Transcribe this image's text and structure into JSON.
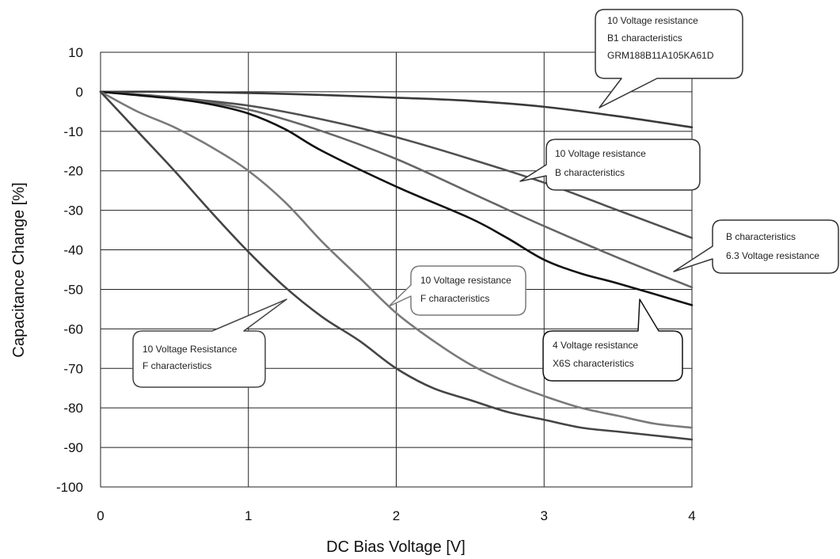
{
  "chart_data": {
    "type": "line",
    "xlabel": "DC Bias Voltage [V]",
    "ylabel": "Capacitance Change [%]",
    "xlim": [
      0,
      4
    ],
    "ylim": [
      -100,
      10
    ],
    "xticks": [
      "0",
      "1",
      "2",
      "3",
      "4"
    ],
    "yticks": [
      "10",
      "0",
      "-10",
      "-20",
      "-30",
      "-40",
      "-50",
      "-60",
      "-70",
      "-80",
      "-90",
      "-100"
    ],
    "grid": true,
    "series": [
      {
        "id": "b1-10v",
        "color": "#3a3a3a",
        "points": [
          [
            0,
            0
          ],
          [
            0.5,
            0
          ],
          [
            1,
            -0.3
          ],
          [
            1.5,
            -0.8
          ],
          [
            2,
            -1.5
          ],
          [
            2.5,
            -2.3
          ],
          [
            3,
            -3.8
          ],
          [
            3.5,
            -6.2
          ],
          [
            4,
            -9
          ]
        ]
      },
      {
        "id": "b-10v",
        "color": "#505050",
        "points": [
          [
            0,
            0
          ],
          [
            0.5,
            -1.5
          ],
          [
            1,
            -3.5
          ],
          [
            1.5,
            -7
          ],
          [
            2,
            -11.5
          ],
          [
            2.5,
            -17
          ],
          [
            3,
            -23
          ],
          [
            3.5,
            -30
          ],
          [
            4,
            -37
          ]
        ]
      },
      {
        "id": "b-6.3v",
        "color": "#666666",
        "points": [
          [
            0,
            0
          ],
          [
            0.5,
            -1.5
          ],
          [
            1,
            -4.5
          ],
          [
            1.5,
            -10
          ],
          [
            2,
            -17
          ],
          [
            2.5,
            -25.5
          ],
          [
            3,
            -34
          ],
          [
            3.5,
            -42
          ],
          [
            4,
            -49.5
          ]
        ]
      },
      {
        "id": "x6s-4v",
        "color": "#111111",
        "points": [
          [
            0,
            0
          ],
          [
            0.5,
            -1.8
          ],
          [
            0.75,
            -3.2
          ],
          [
            1,
            -5.5
          ],
          [
            1.25,
            -9.5
          ],
          [
            1.5,
            -15
          ],
          [
            2,
            -24
          ],
          [
            2.5,
            -32
          ],
          [
            2.75,
            -37
          ],
          [
            3,
            -42.5
          ],
          [
            3.25,
            -46
          ],
          [
            3.5,
            -48.5
          ],
          [
            4,
            -54
          ]
        ]
      },
      {
        "id": "f-10v-gray",
        "color": "#7a7a7a",
        "points": [
          [
            0,
            0
          ],
          [
            0.25,
            -5
          ],
          [
            0.5,
            -9
          ],
          [
            0.75,
            -14
          ],
          [
            1,
            -20
          ],
          [
            1.25,
            -28
          ],
          [
            1.5,
            -38
          ],
          [
            1.75,
            -47
          ],
          [
            2,
            -56
          ],
          [
            2.25,
            -63
          ],
          [
            2.5,
            -69
          ],
          [
            2.75,
            -73.5
          ],
          [
            3,
            -77
          ],
          [
            3.25,
            -80
          ],
          [
            3.5,
            -82
          ],
          [
            3.75,
            -84
          ],
          [
            4,
            -85
          ]
        ]
      },
      {
        "id": "f-10v-dark",
        "color": "#444444",
        "points": [
          [
            0,
            0
          ],
          [
            0.25,
            -10
          ],
          [
            0.5,
            -20
          ],
          [
            0.75,
            -30.5
          ],
          [
            1,
            -40.5
          ],
          [
            1.25,
            -49.5
          ],
          [
            1.5,
            -57
          ],
          [
            1.75,
            -63
          ],
          [
            2,
            -70
          ],
          [
            2.25,
            -75
          ],
          [
            2.5,
            -78
          ],
          [
            2.75,
            -81
          ],
          [
            3,
            -83
          ],
          [
            3.25,
            -85
          ],
          [
            3.5,
            -86
          ],
          [
            3.75,
            -87
          ],
          [
            4,
            -88
          ]
        ]
      }
    ],
    "annotations": [
      {
        "lines": [
          "10 Voltage resistance",
          "B1 characteristics",
          "GRM188B11A105KA61D"
        ]
      },
      {
        "lines": [
          "10 Voltage resistance",
          "B characteristics"
        ]
      },
      {
        "lines": [
          "B characteristics",
          "6.3 Voltage resistance"
        ]
      },
      {
        "lines": [
          "10 Voltage resistance",
          "F characteristics"
        ]
      },
      {
        "lines": [
          "10 Voltage Resistance",
          "F characteristics"
        ]
      },
      {
        "lines": [
          "4 Voltage resistance",
          "X6S characteristics"
        ]
      }
    ]
  }
}
